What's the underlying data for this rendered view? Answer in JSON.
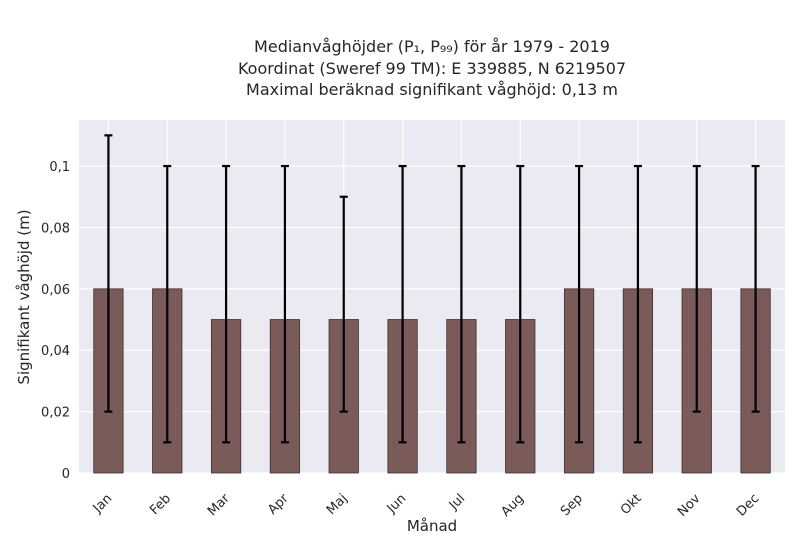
{
  "chart_data": {
    "type": "bar",
    "title_lines": [
      "Medianvåghöjder (P₁, P₉₉) för år 1979 - 2019",
      "Koordinat (Sweref 99 TM): E 339885, N 6219507",
      "Maximal beräknad signifikant våghöjd: 0,13 m"
    ],
    "xlabel": "Månad",
    "ylabel": "Signifikant våghöjd (m)",
    "categories": [
      "Jan",
      "Feb",
      "Mar",
      "Apr",
      "Maj",
      "Jun",
      "Jul",
      "Aug",
      "Sep",
      "Okt",
      "Nov",
      "Dec"
    ],
    "values": [
      0.06,
      0.06,
      0.05,
      0.05,
      0.05,
      0.05,
      0.05,
      0.05,
      0.06,
      0.06,
      0.06,
      0.06
    ],
    "p1": [
      0.02,
      0.01,
      0.01,
      0.01,
      0.02,
      0.01,
      0.01,
      0.01,
      0.01,
      0.01,
      0.02,
      0.02
    ],
    "p99": [
      0.11,
      0.1,
      0.1,
      0.1,
      0.09,
      0.1,
      0.1,
      0.1,
      0.1,
      0.1,
      0.1,
      0.1
    ],
    "ylim": [
      0,
      0.115
    ],
    "yticks": [
      0,
      0.02,
      0.04,
      0.06,
      0.08,
      0.1
    ],
    "ytick_labels": [
      "0",
      "0,02",
      "0,04",
      "0,06",
      "0,08",
      "0,1"
    ],
    "grid": true,
    "colors": {
      "plot_background": "#eaeaf2",
      "bar_fill": "#7b5a5a",
      "bar_edge": "#3f2e2e",
      "error_bar": "#000000"
    }
  }
}
